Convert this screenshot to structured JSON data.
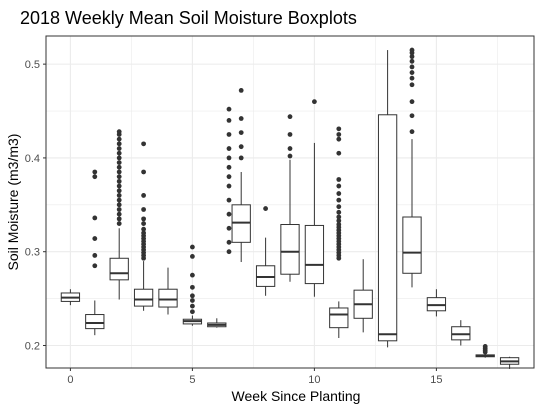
{
  "chart_data": {
    "type": "boxplot",
    "title": "2018 Weekly Mean Soil Moisture Boxplots",
    "xlabel": "Week Since Planting",
    "ylabel": "Soil Moisture (m3/m3)",
    "xlim": [
      -1,
      19
    ],
    "ylim": [
      0.176,
      0.53
    ],
    "x_ticks": [
      0,
      5,
      10,
      15
    ],
    "y_ticks": [
      0.2,
      0.3,
      0.4,
      0.5
    ],
    "grid": true,
    "colors": {
      "box_fill": "#ffffff",
      "box_stroke": "#333333",
      "outlier": "#333333",
      "grid": "#ebebeb",
      "panel_border": "#333333"
    },
    "boxes": [
      {
        "week": 0,
        "whisker_low": 0.243,
        "q1": 0.247,
        "median": 0.251,
        "q3": 0.256,
        "whisker_high": 0.26,
        "outliers": []
      },
      {
        "week": 1,
        "whisker_low": 0.211,
        "q1": 0.218,
        "median": 0.224,
        "q3": 0.233,
        "whisker_high": 0.248,
        "outliers": [
          0.285,
          0.296,
          0.314,
          0.336,
          0.38,
          0.385
        ]
      },
      {
        "week": 2,
        "whisker_low": 0.249,
        "q1": 0.27,
        "median": 0.277,
        "q3": 0.293,
        "whisker_high": 0.325,
        "outliers": [
          0.33,
          0.335,
          0.34,
          0.345,
          0.35,
          0.355,
          0.36,
          0.365,
          0.37,
          0.375,
          0.38,
          0.385,
          0.39,
          0.395,
          0.4,
          0.405,
          0.41,
          0.415,
          0.42,
          0.425,
          0.428
        ]
      },
      {
        "week": 3,
        "whisker_low": 0.237,
        "q1": 0.242,
        "median": 0.249,
        "q3": 0.26,
        "whisker_high": 0.29,
        "outliers": [
          0.293,
          0.296,
          0.299,
          0.302,
          0.305,
          0.308,
          0.311,
          0.314,
          0.317,
          0.32,
          0.324,
          0.33,
          0.335,
          0.345,
          0.36,
          0.385,
          0.415
        ]
      },
      {
        "week": 4,
        "whisker_low": 0.233,
        "q1": 0.241,
        "median": 0.249,
        "q3": 0.26,
        "whisker_high": 0.283,
        "outliers": []
      },
      {
        "week": 5,
        "whisker_low": 0.221,
        "q1": 0.223,
        "median": 0.226,
        "q3": 0.228,
        "whisker_high": 0.232,
        "outliers": [
          0.236,
          0.242,
          0.248,
          0.253,
          0.262,
          0.275,
          0.295,
          0.305
        ]
      },
      {
        "week": 6,
        "whisker_low": 0.219,
        "q1": 0.22,
        "median": 0.222,
        "q3": 0.224,
        "whisker_high": 0.229,
        "outliers": []
      },
      {
        "week": 6.5,
        "whisker_low": null,
        "q1": null,
        "median": null,
        "q3": null,
        "whisker_high": null,
        "outliers": [
          0.3,
          0.31,
          0.325,
          0.34,
          0.355,
          0.37,
          0.38,
          0.39,
          0.4,
          0.41,
          0.425,
          0.44,
          0.452
        ]
      },
      {
        "week": 7,
        "whisker_low": 0.289,
        "q1": 0.31,
        "median": 0.331,
        "q3": 0.35,
        "whisker_high": 0.385,
        "outliers": [
          0.4,
          0.412,
          0.427,
          0.442,
          0.472
        ]
      },
      {
        "week": 8,
        "whisker_low": 0.253,
        "q1": 0.263,
        "median": 0.273,
        "q3": 0.285,
        "whisker_high": 0.315,
        "outliers": [
          0.346
        ]
      },
      {
        "week": 9,
        "whisker_low": 0.268,
        "q1": 0.276,
        "median": 0.3,
        "q3": 0.329,
        "whisker_high": 0.398,
        "outliers": [
          0.402,
          0.41,
          0.425,
          0.444
        ]
      },
      {
        "week": 10,
        "whisker_low": 0.252,
        "q1": 0.266,
        "median": 0.286,
        "q3": 0.328,
        "whisker_high": 0.416,
        "outliers": [
          0.46
        ]
      },
      {
        "week": 11,
        "whisker_low": 0.208,
        "q1": 0.219,
        "median": 0.233,
        "q3": 0.24,
        "whisker_high": 0.247,
        "outliers": [
          0.293,
          0.296,
          0.299,
          0.302,
          0.305,
          0.308,
          0.311,
          0.314,
          0.317,
          0.32,
          0.323,
          0.326,
          0.329,
          0.333,
          0.337,
          0.342,
          0.348,
          0.355,
          0.362,
          0.37,
          0.377,
          0.405,
          0.42,
          0.425,
          0.431
        ]
      },
      {
        "week": 12,
        "whisker_low": 0.214,
        "q1": 0.229,
        "median": 0.244,
        "q3": 0.259,
        "whisker_high": 0.292,
        "outliers": []
      },
      {
        "week": 13,
        "whisker_low": 0.198,
        "q1": 0.205,
        "median": 0.212,
        "q3": 0.446,
        "whisker_high": 0.515,
        "outliers": []
      },
      {
        "week": 14,
        "whisker_low": 0.262,
        "q1": 0.277,
        "median": 0.299,
        "q3": 0.337,
        "whisker_high": 0.42,
        "outliers": [
          0.428,
          0.445,
          0.46,
          0.478,
          0.485,
          0.491,
          0.497,
          0.503,
          0.508,
          0.512,
          0.515
        ]
      },
      {
        "week": 15,
        "whisker_low": 0.231,
        "q1": 0.237,
        "median": 0.243,
        "q3": 0.251,
        "whisker_high": 0.26,
        "outliers": []
      },
      {
        "week": 16,
        "whisker_low": 0.2,
        "q1": 0.206,
        "median": 0.212,
        "q3": 0.22,
        "whisker_high": 0.227,
        "outliers": []
      },
      {
        "week": 17,
        "whisker_low": 0.187,
        "q1": 0.188,
        "median": 0.189,
        "q3": 0.19,
        "whisker_high": 0.191,
        "outliers": [
          0.193,
          0.195,
          0.197,
          0.199
        ]
      },
      {
        "week": 18,
        "whisker_low": 0.175,
        "q1": 0.18,
        "median": 0.183,
        "q3": 0.187,
        "whisker_high": 0.188,
        "outliers": []
      }
    ]
  }
}
